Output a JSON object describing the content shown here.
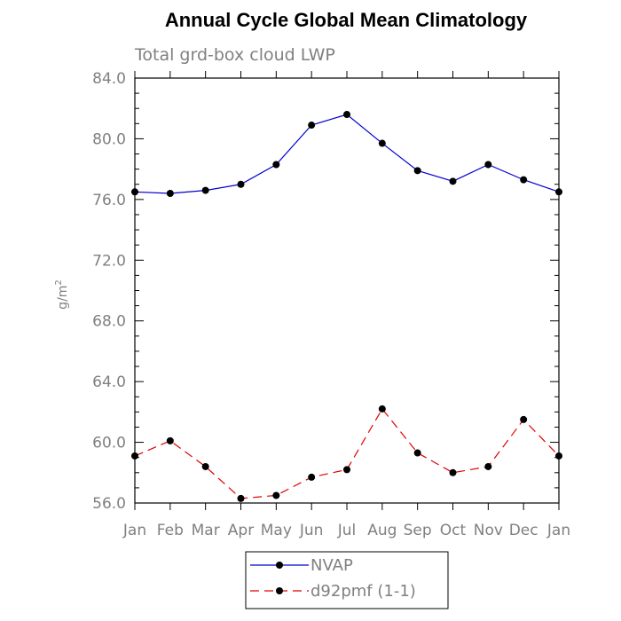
{
  "chart_data": {
    "type": "line",
    "title": "Annual Cycle Global Mean Climatology",
    "subtitle": "Total grd-box cloud LWP",
    "ylabel": "g/m",
    "ylabel_sup": "2",
    "xlabel": "",
    "categories": [
      "Jan",
      "Feb",
      "Mar",
      "Apr",
      "May",
      "Jun",
      "Jul",
      "Aug",
      "Sep",
      "Oct",
      "Nov",
      "Dec",
      "Jan"
    ],
    "ylim": [
      56.0,
      84.0
    ],
    "yticks": [
      56.0,
      60.0,
      64.0,
      68.0,
      72.0,
      76.0,
      80.0,
      84.0
    ],
    "ytick_labels": [
      "56.0",
      "60.0",
      "64.0",
      "68.0",
      "72.0",
      "76.0",
      "80.0",
      "84.0"
    ],
    "grid": false,
    "legend_position": "bottom-center",
    "series": [
      {
        "name": "NVAP",
        "color": "#0000cc",
        "dash": "solid",
        "values": [
          76.5,
          76.4,
          76.6,
          77.0,
          78.3,
          80.9,
          81.6,
          79.7,
          77.9,
          77.2,
          78.3,
          77.3,
          76.5
        ]
      },
      {
        "name": "d92pmf (1-1)",
        "color": "#e00000",
        "dash": "dashed",
        "values": [
          59.1,
          60.1,
          58.4,
          56.3,
          56.5,
          57.7,
          58.2,
          62.2,
          59.3,
          58.0,
          58.4,
          61.5,
          59.1
        ]
      }
    ]
  }
}
